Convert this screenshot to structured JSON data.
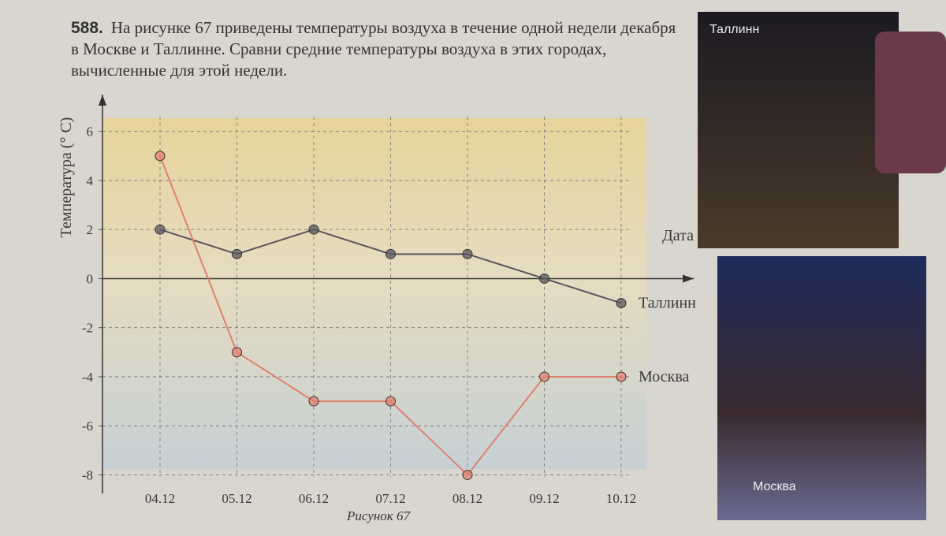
{
  "problem": {
    "number": "588.",
    "text": "На рисунке 67 приведены температуры воздуха в течение одной недели декабря в Москве и Таллинне. Сравни средние температуры воздуха в этих городах, вычисленные для этой недели."
  },
  "chart_data": {
    "type": "line",
    "y_label": "Температура (° C)",
    "x_label": "Дата",
    "categories": [
      "04.12",
      "05.12",
      "06.12",
      "07.12",
      "08.12",
      "09.12",
      "10.12"
    ],
    "series": [
      {
        "name": "Таллинн",
        "color": "#5a5560",
        "values": [
          2,
          1,
          2,
          1,
          1,
          0,
          -1
        ]
      },
      {
        "name": "Москва",
        "color": "#e0806e",
        "values": [
          5,
          -3,
          -5,
          -5,
          -8,
          -4,
          -4
        ]
      }
    ],
    "ylim": [
      -8.5,
      7.5
    ],
    "yticks": [
      -8,
      -6,
      -4,
      -2,
      0,
      2,
      4,
      6
    ],
    "grid": true
  },
  "caption": "Рисунок 67",
  "photos": [
    {
      "caption": "Таллинн"
    },
    {
      "caption": "Москва"
    }
  ]
}
